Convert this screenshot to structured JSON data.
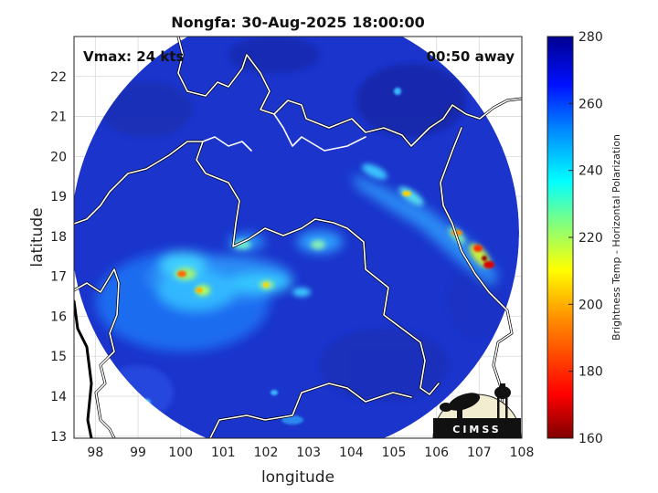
{
  "title": "Nongfa: 30-Aug-2025 18:00:00",
  "vmax_label": "Vmax: 24 kts",
  "away_label": "00:50 away",
  "logo_text": "CIMSS",
  "map": {
    "xlabel": "longitude",
    "ylabel": "latitude",
    "xlim": [
      97.5,
      108
    ],
    "ylim": [
      12.95,
      23
    ],
    "xticks": [
      98,
      99,
      100,
      101,
      102,
      103,
      104,
      105,
      106,
      107,
      108
    ],
    "yticks": [
      13,
      14,
      15,
      16,
      17,
      18,
      19,
      20,
      21,
      22
    ],
    "grid": true
  },
  "colorbar": {
    "label": "Brightness Temp - Horizontal Polarization",
    "ticks": [
      160,
      180,
      200,
      220,
      240,
      260,
      280
    ],
    "range": [
      160,
      280
    ],
    "colors": [
      "#7f0000",
      "#ff0000",
      "#ff8000",
      "#ffff00",
      "#80ff80",
      "#00ffff",
      "#0080ff",
      "#0000ff",
      "#00008f"
    ]
  },
  "colors": {
    "background_field": "#1a35d4",
    "coastline": "#000000",
    "border": "#ffffff"
  }
}
